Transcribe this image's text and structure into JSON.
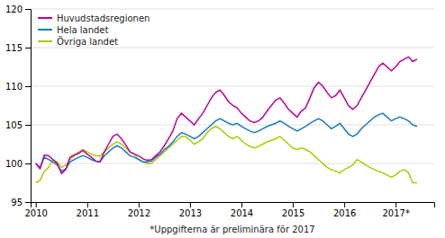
{
  "chart_data": {
    "type": "line",
    "xlabel": "*Uppgifterna är preliminära för 2017",
    "x": [
      2010,
      2010.0833,
      2010.1667,
      2010.25,
      2010.3333,
      2010.4167,
      2010.5,
      2010.5833,
      2010.6667,
      2010.75,
      2010.8333,
      2010.9167,
      2011,
      2011.0833,
      2011.1667,
      2011.25,
      2011.3333,
      2011.4167,
      2011.5,
      2011.5833,
      2011.6667,
      2011.75,
      2011.8333,
      2011.9167,
      2012,
      2012.0833,
      2012.1667,
      2012.25,
      2012.3333,
      2012.4167,
      2012.5,
      2012.5833,
      2012.6667,
      2012.75,
      2012.8333,
      2012.9167,
      2013,
      2013.0833,
      2013.1667,
      2013.25,
      2013.3333,
      2013.4167,
      2013.5,
      2013.5833,
      2013.6667,
      2013.75,
      2013.8333,
      2013.9167,
      2014,
      2014.0833,
      2014.1667,
      2014.25,
      2014.3333,
      2014.4167,
      2014.5,
      2014.5833,
      2014.6667,
      2014.75,
      2014.8333,
      2014.9167,
      2015,
      2015.0833,
      2015.1667,
      2015.25,
      2015.3333,
      2015.4167,
      2015.5,
      2015.5833,
      2015.6667,
      2015.75,
      2015.8333,
      2015.9167,
      2016,
      2016.0833,
      2016.1667,
      2016.25,
      2016.3333,
      2016.4167,
      2016.5,
      2016.5833,
      2016.6667,
      2016.75,
      2016.8333,
      2016.9167,
      2017,
      2017.0833,
      2017.1667,
      2017.25,
      2017.3333,
      2017.4167
    ],
    "series": [
      {
        "name": "Huvudstadsregionen",
        "color": "#bb0099",
        "values": [
          100.0,
          99.3,
          101.1,
          101.0,
          100.5,
          100.0,
          98.7,
          99.2,
          100.8,
          101.1,
          101.3,
          101.7,
          101.2,
          100.8,
          100.3,
          100.2,
          101.5,
          102.5,
          103.5,
          103.8,
          103.2,
          102.4,
          101.5,
          101.2,
          101.0,
          100.6,
          100.4,
          100.5,
          101.0,
          101.5,
          102.3,
          103.2,
          104.2,
          105.8,
          106.5,
          106.0,
          105.5,
          105.0,
          105.8,
          106.5,
          107.5,
          108.5,
          109.2,
          109.5,
          108.8,
          108.0,
          107.5,
          107.2,
          106.5,
          106.0,
          105.5,
          105.3,
          105.5,
          106.0,
          106.8,
          107.5,
          108.2,
          108.5,
          107.8,
          107.0,
          106.5,
          106.0,
          106.8,
          107.2,
          108.5,
          109.8,
          110.5,
          110.0,
          109.2,
          108.5,
          108.8,
          109.5,
          108.5,
          107.5,
          107.0,
          107.5,
          108.5,
          109.5,
          110.5,
          111.5,
          112.5,
          113.0,
          112.5,
          112.0,
          112.5,
          113.2,
          113.5,
          113.8,
          113.2,
          113.5
        ]
      },
      {
        "name": "Hela landet",
        "color": "#1a7abf",
        "values": [
          100.0,
          99.5,
          100.8,
          100.5,
          100.2,
          99.8,
          99.0,
          99.3,
          100.2,
          100.5,
          100.8,
          101.0,
          100.8,
          100.5,
          100.3,
          100.2,
          101.0,
          101.5,
          102.0,
          102.3,
          102.0,
          101.5,
          101.0,
          100.8,
          100.5,
          100.2,
          100.2,
          100.3,
          100.8,
          101.2,
          101.8,
          102.2,
          102.8,
          103.5,
          104.0,
          103.8,
          103.5,
          103.2,
          103.5,
          104.0,
          104.5,
          105.0,
          105.5,
          105.8,
          105.5,
          105.2,
          105.0,
          105.2,
          104.8,
          104.5,
          104.2,
          104.0,
          104.2,
          104.5,
          104.8,
          105.0,
          105.2,
          105.5,
          105.2,
          104.8,
          104.5,
          104.2,
          104.5,
          104.8,
          105.2,
          105.5,
          105.8,
          105.5,
          105.0,
          104.5,
          104.8,
          105.2,
          104.5,
          103.8,
          103.5,
          103.8,
          104.5,
          105.0,
          105.5,
          106.0,
          106.3,
          106.5,
          106.0,
          105.5,
          105.8,
          106.0,
          105.8,
          105.5,
          105.0,
          104.8
        ]
      },
      {
        "name": "Övriga landet",
        "color": "#aacc00",
        "values": [
          97.5,
          97.8,
          99.0,
          99.5,
          100.5,
          100.2,
          99.5,
          99.8,
          100.5,
          101.0,
          101.5,
          101.8,
          101.5,
          101.2,
          101.0,
          101.0,
          101.5,
          102.0,
          102.5,
          102.8,
          102.5,
          102.0,
          101.5,
          101.2,
          100.5,
          100.2,
          100.0,
          100.0,
          100.5,
          101.0,
          101.5,
          102.0,
          102.5,
          103.0,
          103.5,
          103.5,
          103.0,
          102.5,
          102.8,
          103.2,
          104.0,
          104.5,
          104.8,
          104.5,
          104.0,
          103.5,
          103.2,
          103.5,
          103.0,
          102.5,
          102.2,
          102.0,
          102.2,
          102.5,
          102.8,
          103.0,
          103.2,
          103.5,
          103.0,
          102.5,
          102.0,
          101.8,
          102.0,
          101.8,
          101.5,
          101.0,
          100.5,
          100.0,
          99.5,
          99.2,
          99.0,
          98.8,
          99.2,
          99.5,
          99.8,
          100.5,
          100.2,
          99.8,
          99.5,
          99.2,
          99.0,
          98.8,
          98.5,
          98.2,
          98.5,
          99.0,
          99.2,
          98.8,
          97.5,
          97.5
        ]
      }
    ],
    "xlim": [
      2009.9,
      2017.75
    ],
    "xticks": [
      2010,
      2011,
      2012,
      2013,
      2014,
      2015,
      2016,
      {
        "value": 2017,
        "label": "2017*"
      }
    ],
    "ylim": [
      95,
      120
    ],
    "yticks": [
      95,
      100,
      105,
      110,
      115,
      120
    ],
    "grid": true,
    "legend": "upper left"
  }
}
